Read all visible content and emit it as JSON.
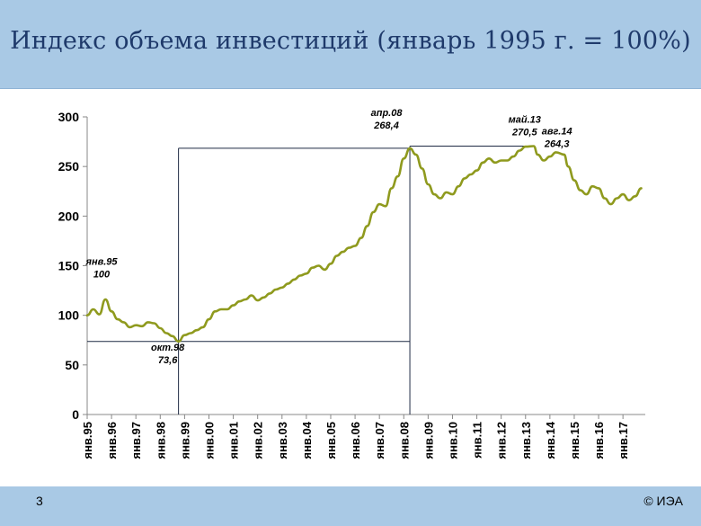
{
  "slide": {
    "title": "Индекс объема инвестиций (январь 1995 г. = 100%)",
    "number": "3",
    "copyright": "© ИЭА"
  },
  "colors": {
    "header_bg": "#a9c9e5",
    "title_text": "#1f3a6b",
    "series_line": "#8f9a1e",
    "reference_lines": "#1f2a44"
  },
  "chart_data": {
    "type": "line",
    "title": "",
    "xlabel": "",
    "ylabel": "",
    "ylim": [
      0,
      300
    ],
    "yticks": [
      0,
      50,
      100,
      150,
      200,
      250,
      300
    ],
    "x_tick_labels": [
      "янв.95",
      "янв.96",
      "янв.97",
      "янв.98",
      "янв.99",
      "янв.00",
      "янв.01",
      "янв.02",
      "янв.03",
      "янв.04",
      "янв.05",
      "янв.06",
      "янв.07",
      "янв.08",
      "янв.09",
      "янв.10",
      "янв.11",
      "янв.12",
      "янв.13",
      "янв.14",
      "янв.15",
      "янв.16",
      "янв.17"
    ],
    "grid": false,
    "legend": "none",
    "series": [
      {
        "x": [
          "1995-01",
          "1995-04",
          "1995-07",
          "1995-10",
          "1996-01",
          "1996-04",
          "1996-07",
          "1996-10",
          "1997-01",
          "1997-04",
          "1997-07",
          "1997-10",
          "1998-01",
          "1998-04",
          "1998-07",
          "1998-10",
          "1999-01",
          "1999-04",
          "1999-07",
          "1999-10",
          "2000-01",
          "2000-04",
          "2000-07",
          "2000-10",
          "2001-01",
          "2001-04",
          "2001-07",
          "2001-10",
          "2002-01",
          "2002-04",
          "2002-07",
          "2002-10",
          "2003-01",
          "2003-04",
          "2003-07",
          "2003-10",
          "2004-01",
          "2004-04",
          "2004-07",
          "2004-10",
          "2005-01",
          "2005-04",
          "2005-07",
          "2005-10",
          "2006-01",
          "2006-04",
          "2006-07",
          "2006-10",
          "2007-01",
          "2007-04",
          "2007-07",
          "2007-10",
          "2008-01",
          "2008-04",
          "2008-07",
          "2008-10",
          "2009-01",
          "2009-04",
          "2009-07",
          "2009-10",
          "2010-01",
          "2010-04",
          "2010-07",
          "2010-10",
          "2011-01",
          "2011-04",
          "2011-07",
          "2011-10",
          "2012-01",
          "2012-04",
          "2012-07",
          "2012-10",
          "2013-01",
          "2013-05",
          "2013-07",
          "2013-10",
          "2014-01",
          "2014-04",
          "2014-08",
          "2014-10",
          "2015-01",
          "2015-04",
          "2015-07",
          "2015-10",
          "2016-01",
          "2016-04",
          "2016-07",
          "2016-10",
          "2017-01",
          "2017-04",
          "2017-07",
          "2017-10"
        ],
        "values": [
          100,
          106,
          101,
          116,
          104,
          96,
          93,
          88,
          90,
          89,
          93,
          92,
          87,
          82,
          79,
          73.6,
          80,
          82,
          85,
          88,
          96,
          104,
          106,
          106,
          110,
          114,
          116,
          120,
          115,
          118,
          122,
          126,
          128,
          132,
          136,
          140,
          142,
          148,
          150,
          146,
          152,
          160,
          164,
          168,
          170,
          178,
          190,
          204,
          212,
          210,
          228,
          240,
          258,
          268.4,
          262,
          248,
          232,
          222,
          218,
          224,
          222,
          230,
          238,
          242,
          246,
          254,
          258,
          254,
          256,
          256,
          260,
          266,
          270,
          270.5,
          262,
          256,
          260,
          264.3,
          262,
          250,
          236,
          226,
          222,
          230,
          228,
          218,
          212,
          218,
          222,
          216,
          220,
          228
        ]
      }
    ],
    "annotations": [
      {
        "label": "янв.95",
        "value": "100",
        "x": "1995-01",
        "y": 100
      },
      {
        "label": "окт.98",
        "value": "73,6",
        "x": "1998-10",
        "y": 73.6
      },
      {
        "label": "апр.08",
        "value": "268,4",
        "x": "2008-04",
        "y": 268.4
      },
      {
        "label": "май.13",
        "value": "270,5",
        "x": "2013-05",
        "y": 270.5
      },
      {
        "label": "авг.14",
        "value": "264,3",
        "x": "2014-08",
        "y": 264.3
      }
    ],
    "reference_lines": [
      {
        "type": "horizontal",
        "y": 73.6,
        "from": "1995-01",
        "to": "2008-04"
      },
      {
        "type": "vertical",
        "x": "1998-10",
        "from_y": 0,
        "to_y": 268.4
      },
      {
        "type": "horizontal",
        "y": 268.4,
        "from": "1998-10",
        "to": "2008-04"
      },
      {
        "type": "vertical",
        "x": "2008-04",
        "from_y": 0,
        "to_y": 270.5
      },
      {
        "type": "horizontal",
        "y": 270.5,
        "from": "2008-04",
        "to": "2013-05"
      }
    ]
  }
}
